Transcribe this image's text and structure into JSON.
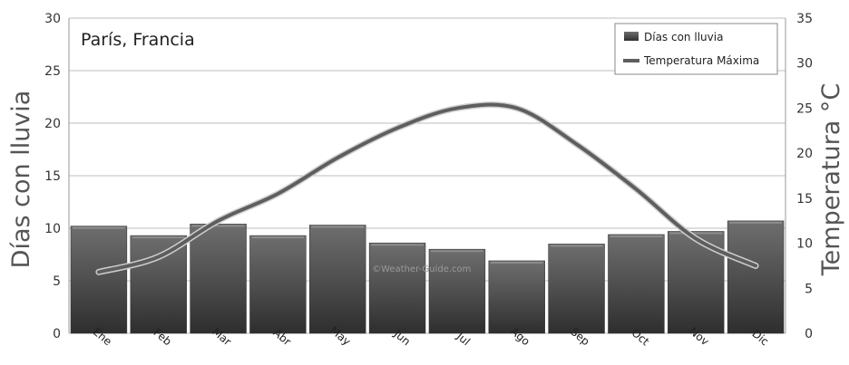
{
  "chart_data": {
    "type": "bar",
    "title": "París, Francia",
    "watermark": "©Weather-Guide.com",
    "categories": [
      "Ene",
      "Feb",
      "Mar",
      "Abr",
      "May",
      "Jun",
      "Jul",
      "Ago",
      "Sep",
      "Oct",
      "Nov",
      "Dic"
    ],
    "series": [
      {
        "name": "Días con lluvia",
        "type": "bar",
        "axis": "left",
        "values": [
          10.2,
          9.3,
          10.4,
          9.3,
          10.3,
          8.6,
          8.0,
          6.9,
          8.5,
          9.4,
          9.7,
          10.7
        ]
      },
      {
        "name": "Temperatura Máxima",
        "type": "line",
        "axis": "right",
        "values": [
          6.8,
          8.5,
          12.5,
          15.5,
          19.5,
          22.8,
          25.0,
          25.0,
          21.0,
          16.0,
          10.5,
          7.5
        ]
      }
    ],
    "ylabel_left": "Días con lluvia",
    "ylabel_right": "Temperatura °C",
    "ylim_left": [
      0,
      30
    ],
    "ylim_right": [
      0,
      35
    ],
    "yticks_left": [
      "0",
      "5",
      "10",
      "15",
      "20",
      "25",
      "30"
    ],
    "yticks_right": [
      "0",
      "5",
      "10",
      "15",
      "20",
      "25",
      "30",
      "35"
    ],
    "legend_position": "top-right",
    "grid": true,
    "colors": {
      "bar": "#555555",
      "line": "#5e5e5e",
      "grid": "#bdbdbd"
    }
  }
}
